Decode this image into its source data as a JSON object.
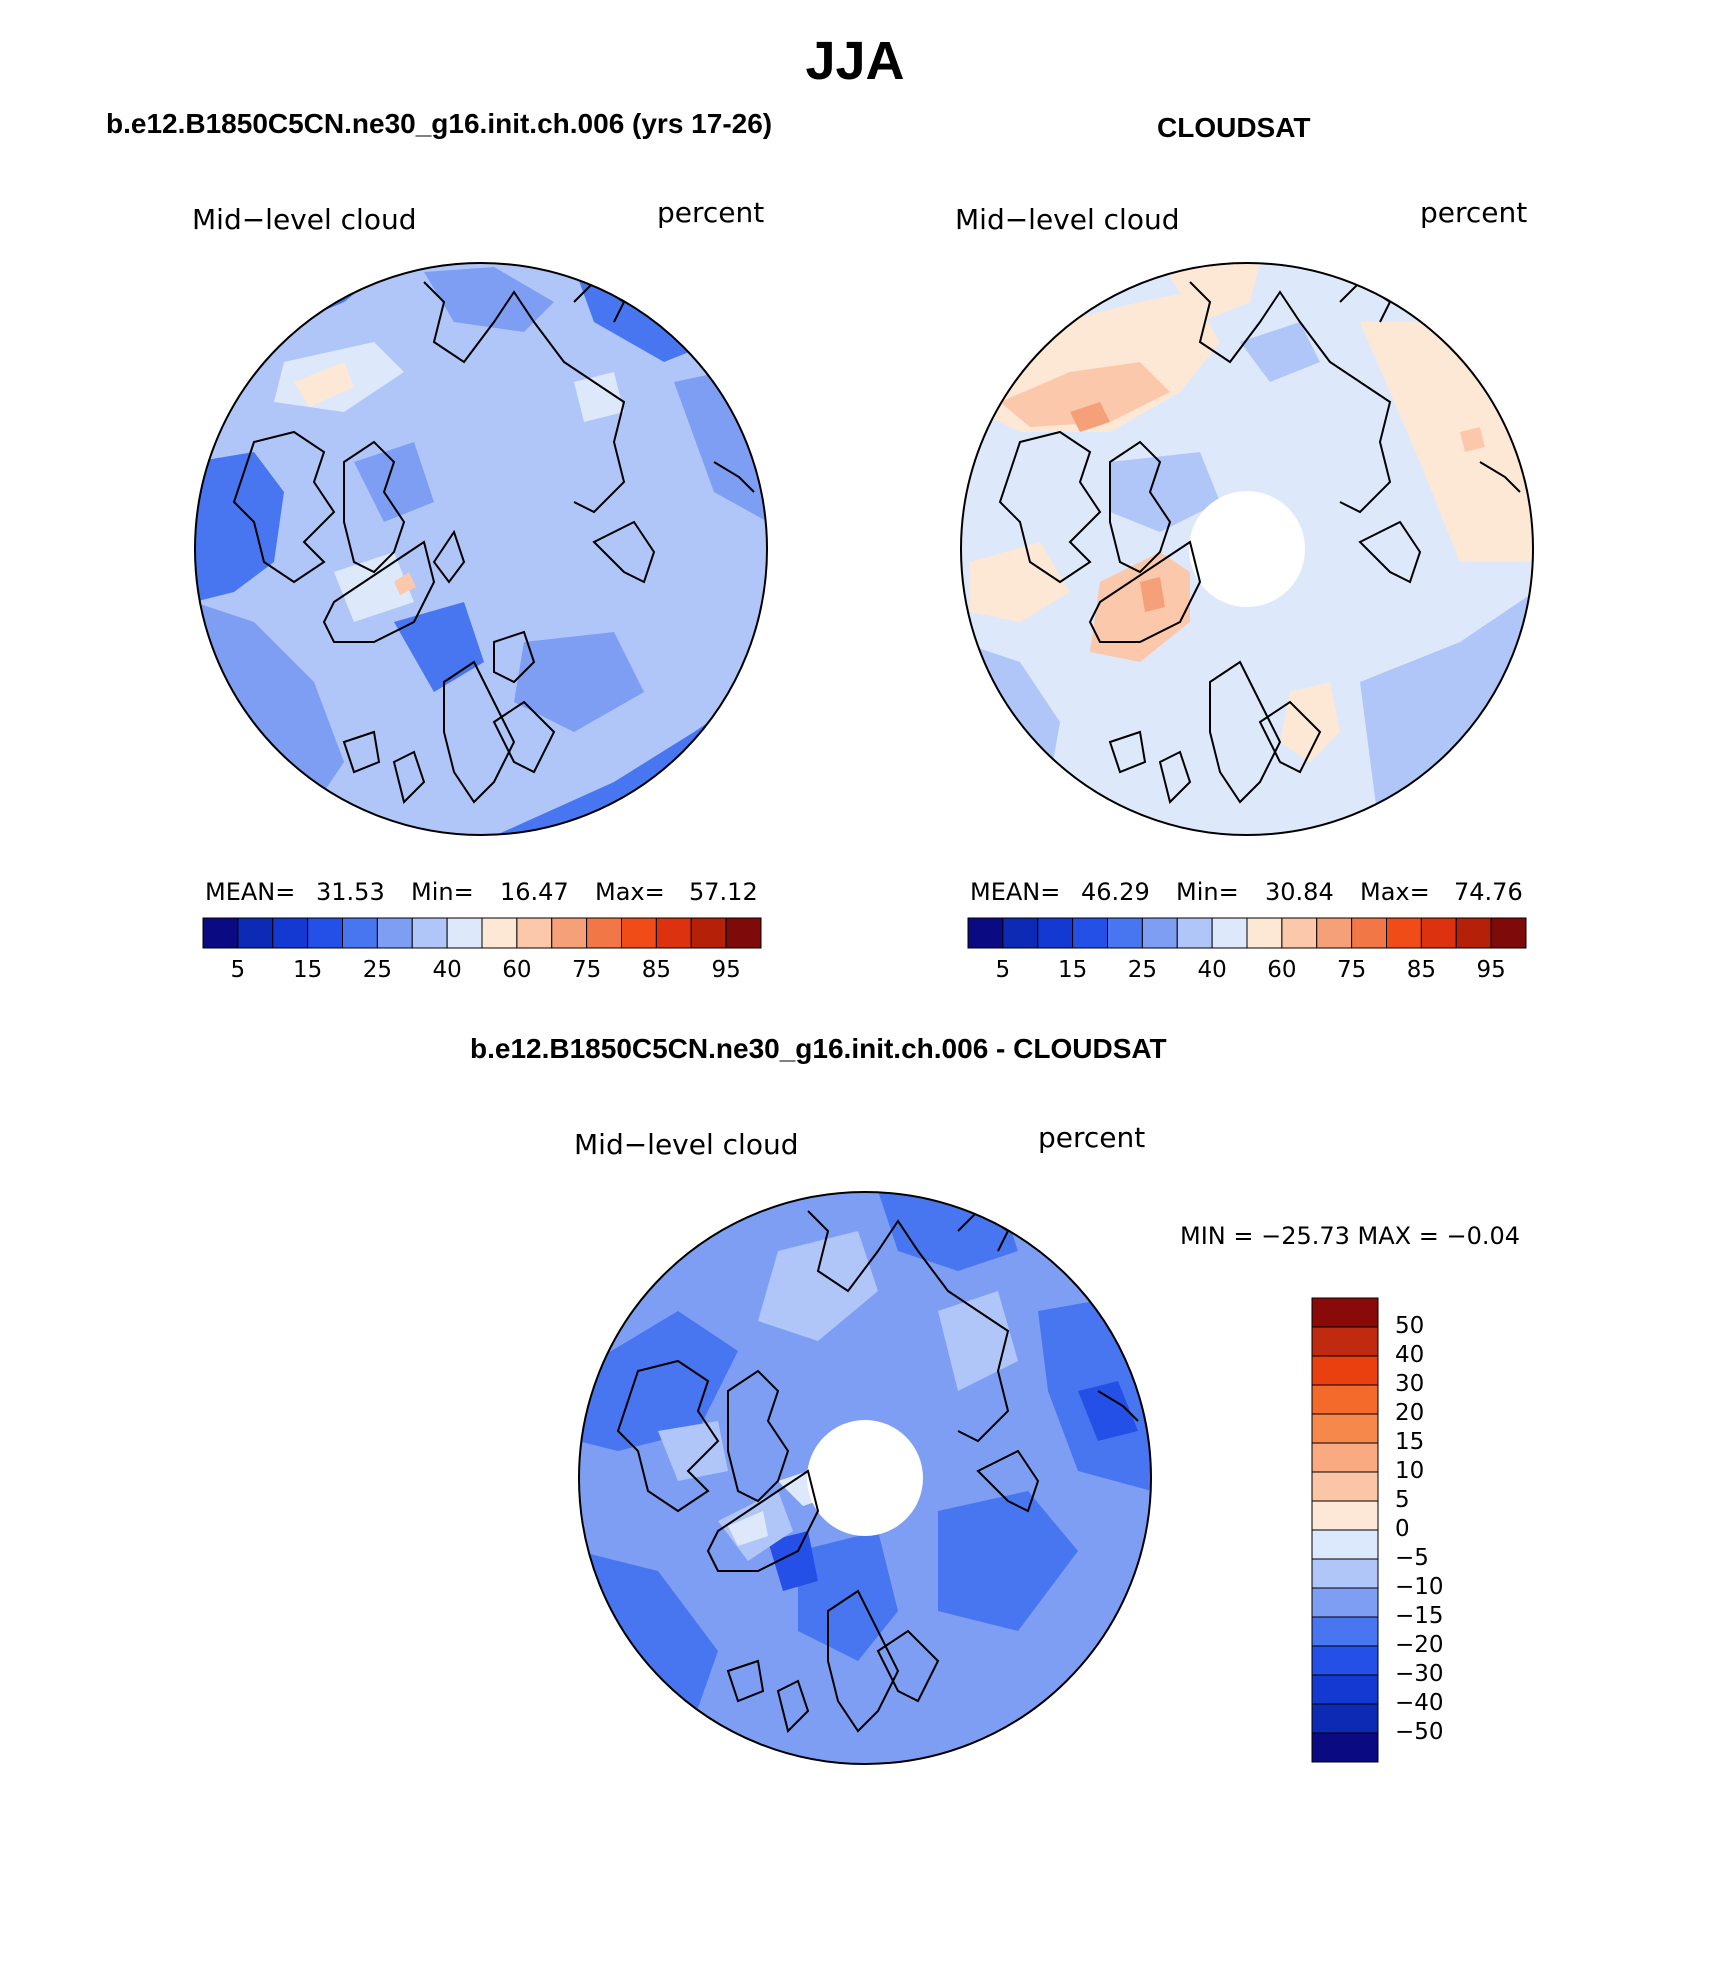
{
  "figure": {
    "title": "JJA",
    "left_panel_heading": "b.e12.B1850C5CN.ne30_g16.init.ch.006 (yrs 17-26)",
    "right_panel_heading": "CLOUDSAT",
    "bottom_panel_heading": "b.e12.B1850C5CN.ne30_g16.init.ch.006 - CLOUDSAT"
  },
  "panels": {
    "model": {
      "variable": "Mid−level cloud",
      "units": "percent",
      "mean_label": "MEAN=",
      "mean": "31.53",
      "min_label": "Min=",
      "min": "16.47",
      "max_label": "Max=",
      "max": "57.12"
    },
    "obs": {
      "variable": "Mid−level cloud",
      "units": "percent",
      "mean_label": "MEAN=",
      "mean": "46.29",
      "min_label": "Min=",
      "min": "30.84",
      "max_label": "Max=",
      "max": "74.76"
    },
    "diff": {
      "variable": "Mid−level cloud",
      "units": "percent",
      "minmax_text": "MIN = −25.73 MAX =  −0.04"
    }
  },
  "colorbars": {
    "abs_colors": [
      "#0a0a82",
      "#0c2ab4",
      "#1438d2",
      "#2450e8",
      "#4876f0",
      "#7e9ef4",
      "#b0c6f8",
      "#dde9fb",
      "#fde8d6",
      "#fbc8ab",
      "#f6a07a",
      "#f27746",
      "#f04c18",
      "#dc3210",
      "#b42108",
      "#7e0a0a"
    ],
    "abs_tick_labels": [
      "5",
      "15",
      "25",
      "40",
      "60",
      "75",
      "85",
      "95"
    ],
    "diff_colors_top_to_bottom": [
      "#8a0a0a",
      "#c02a10",
      "#ea4010",
      "#f46a2a",
      "#f6884c",
      "#f9aa80",
      "#fbc6a6",
      "#fde8d8",
      "#dce8fb",
      "#b0c6f8",
      "#7e9ef4",
      "#4876f0",
      "#2450e8",
      "#1438d2",
      "#0c2ab4",
      "#0a0a82"
    ],
    "diff_tick_labels": [
      "50",
      "40",
      "30",
      "20",
      "15",
      "10",
      "5",
      "0",
      "−5",
      "−10",
      "−15",
      "−20",
      "−30",
      "−40",
      "−50"
    ]
  },
  "map_fill_colors": {
    "model_base": "#b0c6f8",
    "obs_base": "#dde9fb",
    "diff_base": "#7e9ef4",
    "warm_patch": "#fbc8ab",
    "warm_core": "#f6a07a",
    "deep_blue": "#2450e8",
    "mid_blue": "#4876f0",
    "coast": "#000000"
  }
}
